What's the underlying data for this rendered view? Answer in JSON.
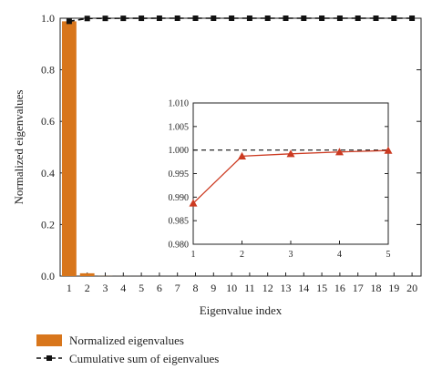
{
  "chart_data": [
    {
      "type": "bar",
      "xlabel": "Eigenvalue index",
      "ylabel": "Normalized eigenvalues",
      "x": [
        1,
        2,
        3,
        4,
        5,
        6,
        7,
        8,
        9,
        10,
        11,
        12,
        13,
        14,
        15,
        16,
        17,
        18,
        19,
        20
      ],
      "xtick_labels": [
        "1",
        "2",
        "3",
        "4",
        "5",
        "6",
        "7",
        "8",
        "9",
        "10",
        "11",
        "12",
        "13",
        "14",
        "15",
        "16",
        "17",
        "18",
        "19",
        "20"
      ],
      "ylim": [
        0,
        1.0
      ],
      "yticks": [
        0.0,
        0.2,
        0.4,
        0.6,
        0.8,
        1.0
      ],
      "ytick_labels": [
        "0.0",
        "0.2",
        "0.4",
        "0.6",
        "0.8",
        "1.0"
      ],
      "grid": false,
      "legend_position": "bottom",
      "series": [
        {
          "name": "Normalized eigenvalues",
          "kind": "bar",
          "color": "#d8761c",
          "values": [
            0.988,
            0.011,
            0.0004,
            0.0001,
            3e-05,
            0,
            0,
            0,
            0,
            0,
            0,
            0,
            0,
            0,
            0,
            0,
            0,
            0,
            0,
            0
          ]
        },
        {
          "name": "Cumulative sum of eigenvalues",
          "kind": "line",
          "color": "#111111",
          "line_style": "dashed",
          "marker": "square",
          "values": [
            0.988,
            0.999,
            0.9994,
            0.9996,
            0.9998,
            1.0,
            1.0,
            1.0,
            1.0,
            1.0,
            1.0,
            1.0,
            1.0,
            1.0,
            1.0,
            1.0,
            1.0,
            1.0,
            1.0,
            1.0
          ]
        }
      ]
    },
    {
      "type": "line",
      "role": "inset",
      "x": [
        1,
        2,
        3,
        4,
        5
      ],
      "xtick_labels": [
        "1",
        "2",
        "3",
        "4",
        "5"
      ],
      "xlim": [
        1,
        5
      ],
      "ylim": [
        0.98,
        1.01
      ],
      "yticks": [
        0.98,
        0.985,
        0.99,
        0.995,
        1.0,
        1.005,
        1.01
      ],
      "ytick_labels": [
        "0.980",
        "0.985",
        "0.990",
        "0.995",
        "1.000",
        "1.005",
        "1.010"
      ],
      "reference_line": {
        "y": 1.0,
        "style": "dashed",
        "color": "#111111"
      },
      "series": [
        {
          "kind": "line",
          "color": "#cc3a21",
          "marker": "triangle",
          "values": [
            0.9887,
            0.9987,
            0.9992,
            0.9996,
            0.9999
          ]
        }
      ]
    }
  ]
}
